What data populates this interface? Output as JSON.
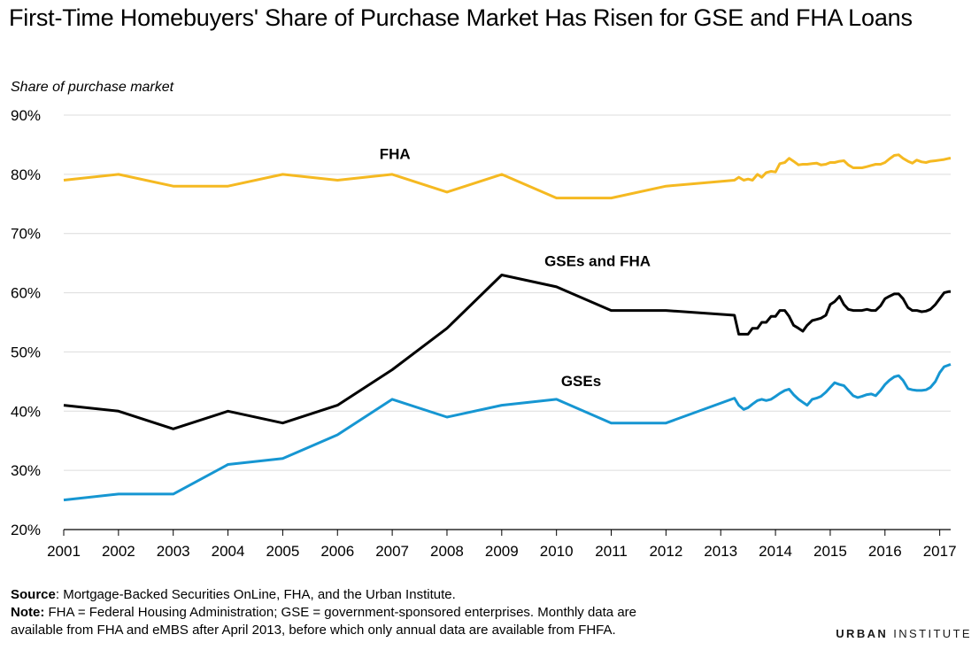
{
  "title": "First-Time Homebuyers' Share of Purchase Market Has Risen for GSE and FHA Loans",
  "footer": {
    "source_label": "Source",
    "source_text": ": Mortgage-Backed Securities OnLine, FHA, and the Urban Institute.",
    "note_label": "Note:",
    "note_text": " FHA = Federal Housing Administration; GSE = government-sponsored enterprises. Monthly data are",
    "note_text2": "available from FHA and eMBS after April 2013, before which only annual data are available from FHFA."
  },
  "brand": {
    "part1": "URBAN",
    "part2": " INSTITUTE"
  },
  "colors": {
    "fha": "#f5b921",
    "combined": "#000000",
    "gse": "#1696d2",
    "grid": "#dcdcdc"
  },
  "chart_data": {
    "type": "line",
    "ylabel": "Share of purchase market",
    "xlim": [
      2001,
      2017.2
    ],
    "ylim": [
      20,
      90
    ],
    "x_ticks": [
      "2001",
      "2002",
      "2003",
      "2004",
      "2005",
      "2006",
      "2007",
      "2008",
      "2009",
      "2010",
      "2011",
      "2012",
      "2013",
      "2014",
      "2015",
      "2016",
      "2017"
    ],
    "y_ticks": [
      "20%",
      "30%",
      "40%",
      "50%",
      "60%",
      "70%",
      "80%",
      "90%"
    ],
    "grid": true,
    "series": [
      {
        "name": "FHA",
        "x": [
          2001,
          2002,
          2003,
          2004,
          2005,
          2006,
          2007,
          2008,
          2009,
          2010,
          2011,
          2012,
          2013.25,
          2013.33,
          2013.42,
          2013.5,
          2013.58,
          2013.67,
          2013.75,
          2013.83,
          2013.92,
          2014.0,
          2014.08,
          2014.17,
          2014.25,
          2014.33,
          2014.42,
          2014.5,
          2014.58,
          2014.67,
          2014.75,
          2014.83,
          2014.92,
          2015.0,
          2015.08,
          2015.17,
          2015.25,
          2015.33,
          2015.42,
          2015.5,
          2015.58,
          2015.67,
          2015.75,
          2015.83,
          2015.92,
          2016.0,
          2016.08,
          2016.17,
          2016.25,
          2016.33,
          2016.42,
          2016.5,
          2016.58,
          2016.67,
          2016.75,
          2016.83,
          2016.92,
          2017.0,
          2017.08,
          2017.17,
          2017.2
        ],
        "values": [
          79,
          80,
          78,
          78,
          80,
          79,
          80,
          77,
          80,
          76,
          76,
          78,
          79,
          79.5,
          79,
          79.2,
          79,
          80,
          79.5,
          80.3,
          80.5,
          80.4,
          81.8,
          82,
          82.7,
          82.2,
          81.6,
          81.7,
          81.7,
          81.8,
          81.9,
          81.6,
          81.7,
          82,
          82,
          82.2,
          82.3,
          81.6,
          81.1,
          81.1,
          81.1,
          81.3,
          81.5,
          81.7,
          81.7,
          82,
          82.6,
          83.2,
          83.3,
          82.7,
          82.2,
          81.9,
          82.4,
          82.1,
          82,
          82.2,
          82.3,
          82.4,
          82.5,
          82.7,
          82.7
        ],
        "color": "#f5b921"
      },
      {
        "name": "GSEs and FHA",
        "x": [
          2001,
          2002,
          2003,
          2004,
          2005,
          2006,
          2007,
          2008,
          2009,
          2010,
          2011,
          2012,
          2013.25,
          2013.33,
          2013.42,
          2013.5,
          2013.58,
          2013.67,
          2013.75,
          2013.83,
          2013.92,
          2014.0,
          2014.08,
          2014.17,
          2014.25,
          2014.33,
          2014.42,
          2014.5,
          2014.58,
          2014.67,
          2014.75,
          2014.83,
          2014.92,
          2015.0,
          2015.08,
          2015.17,
          2015.25,
          2015.33,
          2015.42,
          2015.5,
          2015.58,
          2015.67,
          2015.75,
          2015.83,
          2015.92,
          2016.0,
          2016.08,
          2016.17,
          2016.25,
          2016.33,
          2016.42,
          2016.5,
          2016.58,
          2016.67,
          2016.75,
          2016.83,
          2016.92,
          2017.0,
          2017.08,
          2017.17,
          2017.2
        ],
        "values": [
          41,
          40,
          37,
          40,
          38,
          41,
          47,
          54,
          63,
          61,
          57,
          57,
          56.2,
          53,
          53,
          53,
          54,
          54,
          55,
          55,
          56,
          56,
          57,
          57,
          56,
          54.5,
          54,
          53.5,
          54.5,
          55.3,
          55.5,
          55.7,
          56.2,
          58,
          58.5,
          59.4,
          58,
          57.2,
          57,
          57,
          57,
          57.2,
          57,
          57,
          57.8,
          59,
          59.4,
          59.8,
          59.8,
          59,
          57.5,
          57,
          57,
          56.8,
          56.9,
          57.2,
          58,
          59,
          60,
          60.2,
          60.2
        ],
        "color": "#000000"
      },
      {
        "name": "GSEs",
        "x": [
          2001,
          2002,
          2003,
          2004,
          2005,
          2006,
          2007,
          2008,
          2009,
          2010,
          2011,
          2012,
          2013.25,
          2013.33,
          2013.42,
          2013.5,
          2013.58,
          2013.67,
          2013.75,
          2013.83,
          2013.92,
          2014.0,
          2014.08,
          2014.17,
          2014.25,
          2014.33,
          2014.42,
          2014.5,
          2014.58,
          2014.67,
          2014.75,
          2014.83,
          2014.92,
          2015.0,
          2015.08,
          2015.17,
          2015.25,
          2015.33,
          2015.42,
          2015.5,
          2015.58,
          2015.67,
          2015.75,
          2015.83,
          2015.92,
          2016.0,
          2016.08,
          2016.17,
          2016.25,
          2016.33,
          2016.42,
          2016.5,
          2016.58,
          2016.67,
          2016.75,
          2016.83,
          2016.92,
          2017.0,
          2017.08,
          2017.17,
          2017.2
        ],
        "values": [
          25,
          26,
          26,
          31,
          32,
          36,
          42,
          39,
          41,
          42,
          38,
          38,
          42.2,
          41,
          40.3,
          40.6,
          41.2,
          41.8,
          42,
          41.8,
          42,
          42.5,
          43,
          43.5,
          43.7,
          42.8,
          42,
          41.5,
          41,
          42,
          42.2,
          42.5,
          43.2,
          44,
          44.8,
          44.5,
          44.3,
          43.5,
          42.6,
          42.3,
          42.5,
          42.8,
          42.9,
          42.6,
          43.5,
          44.5,
          45.2,
          45.8,
          46,
          45.2,
          43.8,
          43.6,
          43.5,
          43.5,
          43.6,
          44,
          45,
          46.5,
          47.5,
          47.8,
          47.9
        ],
        "color": "#1696d2"
      }
    ],
    "annotations": [
      {
        "text": "FHA",
        "x": 2007.05,
        "y": 82.6
      },
      {
        "text": "GSEs and FHA",
        "x": 2010.75,
        "y": 64.5
      },
      {
        "text": "GSEs",
        "x": 2010.45,
        "y": 44.2
      }
    ]
  }
}
